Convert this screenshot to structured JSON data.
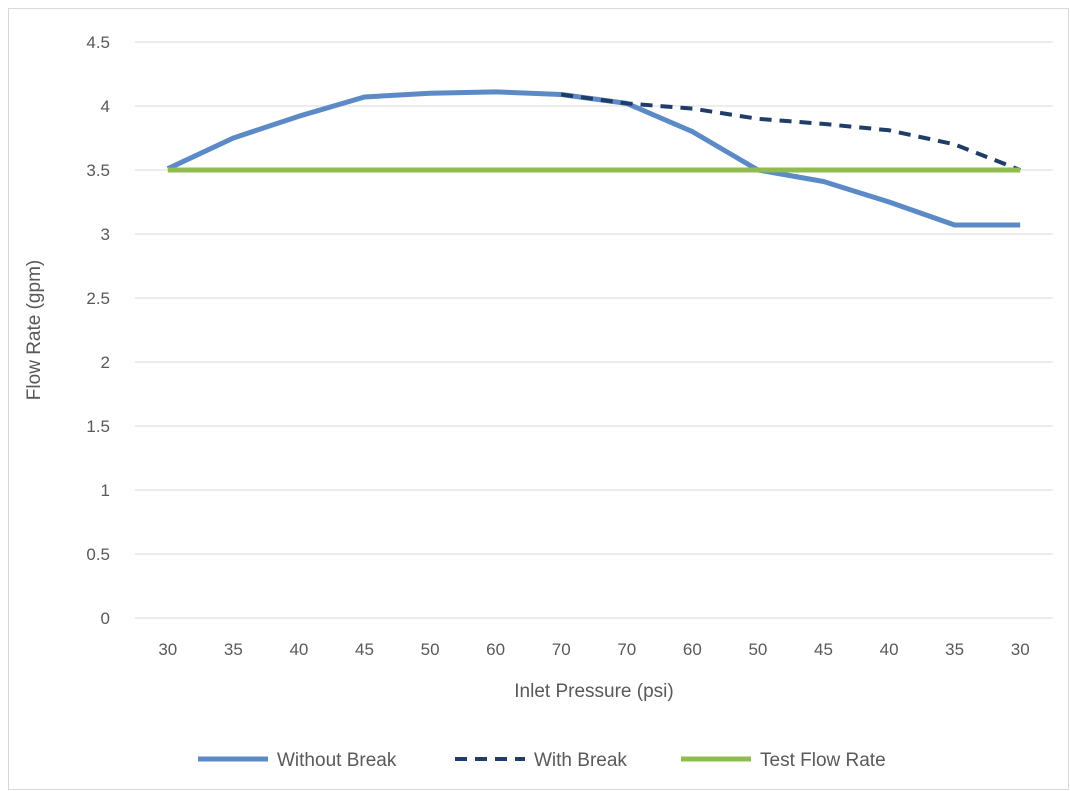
{
  "chart_data": {
    "type": "line",
    "title": "",
    "xlabel": "Inlet Pressure (psi)",
    "ylabel": "Flow Rate (gpm)",
    "categories": [
      "30",
      "35",
      "40",
      "45",
      "50",
      "60",
      "70",
      "70",
      "60",
      "50",
      "45",
      "40",
      "35",
      "30"
    ],
    "ylim": [
      0,
      4.5
    ],
    "yticks": [
      0,
      0.5,
      1,
      1.5,
      2,
      2.5,
      3,
      3.5,
      4,
      4.5
    ],
    "ytick_labels": [
      "0",
      "0.5",
      "1",
      "1.5",
      "2",
      "2.5",
      "3",
      "3.5",
      "4",
      "4.5"
    ],
    "grid": true,
    "legend_position": "bottom",
    "series": [
      {
        "name": "Without Break",
        "style": "solid",
        "color": "#5b8ac6",
        "values": [
          3.51,
          3.75,
          3.92,
          4.07,
          4.1,
          4.11,
          4.09,
          4.02,
          3.8,
          3.5,
          3.41,
          3.25,
          3.07,
          3.07
        ]
      },
      {
        "name": "With Break",
        "style": "dashed",
        "color": "#1f3d66",
        "values": [
          null,
          null,
          null,
          null,
          null,
          null,
          4.09,
          4.02,
          3.98,
          3.9,
          3.86,
          3.81,
          3.7,
          3.5
        ]
      },
      {
        "name": "Test Flow Rate",
        "style": "solid",
        "color": "#8fbb4f",
        "values": [
          3.5,
          3.5,
          3.5,
          3.5,
          3.5,
          3.5,
          3.5,
          3.5,
          3.5,
          3.5,
          3.5,
          3.5,
          3.5,
          3.5
        ]
      }
    ]
  }
}
